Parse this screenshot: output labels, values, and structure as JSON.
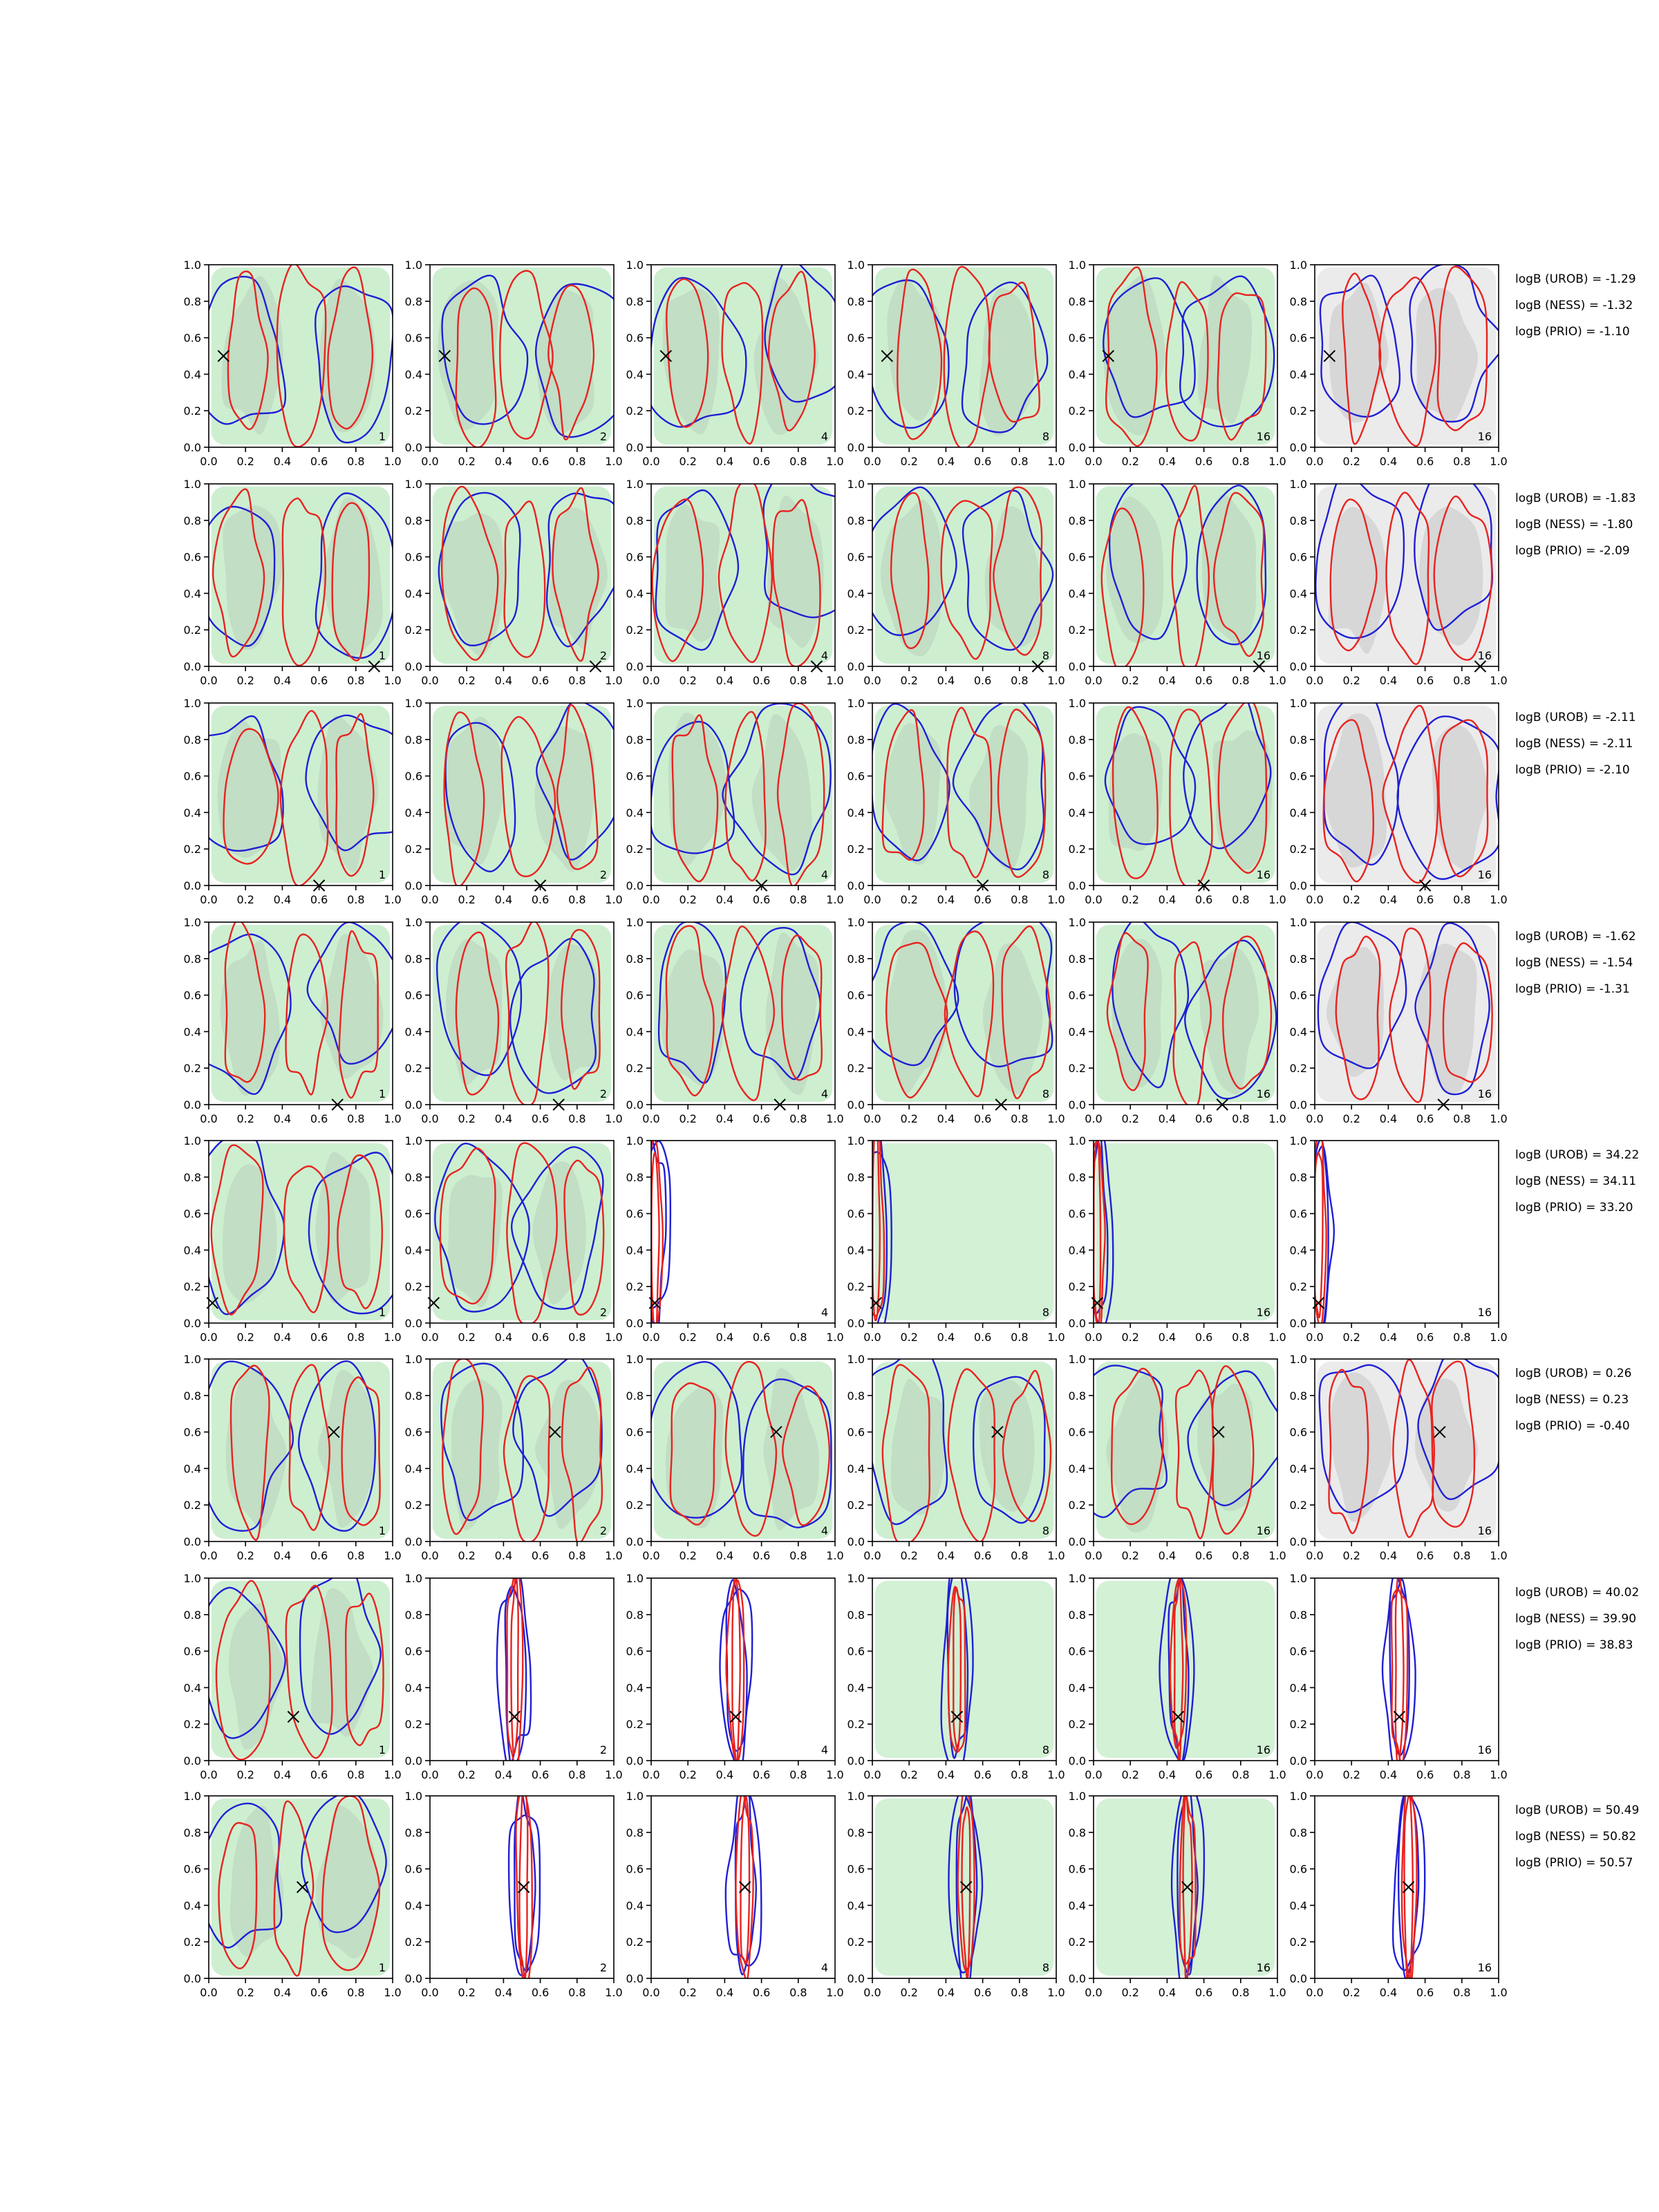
{
  "chart_data": {
    "type": "contour",
    "layout": {
      "rows": 8,
      "cols": 6
    },
    "axes": {
      "xlim": [
        0,
        1
      ],
      "ylim": [
        0,
        1
      ],
      "ticks": [
        0.0,
        0.2,
        0.4,
        0.6,
        0.8,
        1.0
      ],
      "tick_labels": [
        "0.0",
        "0.2",
        "0.4",
        "0.6",
        "0.8",
        "1.0"
      ]
    },
    "panel_labels": [
      "1",
      "2",
      "4",
      "8",
      "16",
      "16"
    ],
    "panel_fill": [
      "green",
      "green",
      "green",
      "green",
      "green",
      "gray"
    ],
    "colors": {
      "blue": "#1f1fd6",
      "red": "#e8231f",
      "green_fill": "#cdefd0",
      "green_dark": "#bfd9c2",
      "gray_fill": "#ebebeb",
      "gray_dark": "#d2d2d2"
    },
    "rows": [
      {
        "markers": [
          [
            0.08,
            0.5
          ]
        ],
        "annotations": [
          "logB (UROB) = -1.29",
          "logB (NESS) = -1.32",
          "logB (PRIO) = -1.10"
        ]
      },
      {
        "markers": [
          [
            0.9,
            0.0
          ]
        ],
        "annotations": [
          "logB (UROB) = -1.83",
          "logB (NESS) = -1.80",
          "logB (PRIO) = -2.09"
        ]
      },
      {
        "markers": [
          [
            0.6,
            0.0
          ]
        ],
        "annotations": [
          "logB (UROB) = -2.11",
          "logB (NESS) = -2.11",
          "logB (PRIO) = -2.10"
        ]
      },
      {
        "markers": [
          [
            0.7,
            0.0
          ]
        ],
        "annotations": [
          "logB (UROB) = -1.62",
          "logB (NESS) = -1.54",
          "logB (PRIO) = -1.31"
        ]
      },
      {
        "markers": [
          [
            0.02,
            0.11
          ]
        ],
        "annotations": [
          "logB (UROB) = 34.22",
          "logB (NESS) = 34.11",
          "logB (PRIO) = 33.20"
        ]
      },
      {
        "markers": [
          [
            0.68,
            0.6
          ]
        ],
        "annotations": [
          "logB (UROB) = 0.26",
          "logB (NESS) = 0.23",
          "logB (PRIO) = -0.40"
        ]
      },
      {
        "markers": [
          [
            0.46,
            0.24
          ]
        ],
        "annotations": [
          "logB (UROB) = 40.02",
          "logB (NESS) = 39.90",
          "logB (PRIO) = 38.83"
        ]
      },
      {
        "markers": [
          [
            0.51,
            0.5
          ]
        ],
        "annotations": [
          "logB (UROB) = 50.49",
          "logB (NESS) = 50.82",
          "logB (PRIO) = 50.57"
        ]
      }
    ]
  }
}
